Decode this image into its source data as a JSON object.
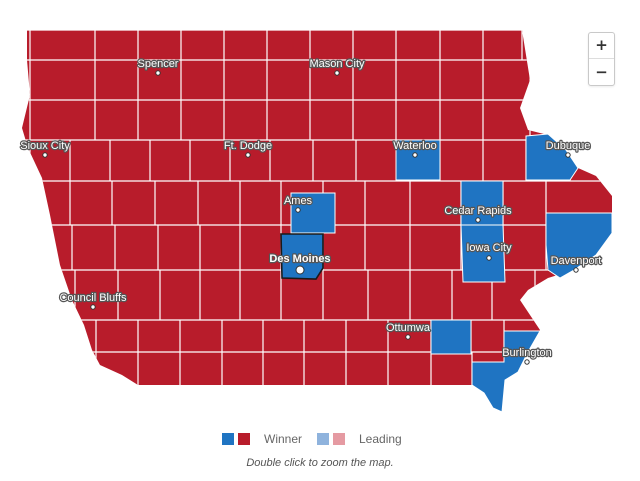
{
  "map": {
    "state": "Iowa",
    "colors": {
      "dem_winner": "#1f74c2",
      "rep_winner": "#b81c2b",
      "dem_leading": "#8fb3dd",
      "rep_leading": "#e59aa2",
      "county_border": "#ffffff",
      "highlight_border": "#1a1a1a"
    },
    "cities": [
      {
        "name": "Spencer"
      },
      {
        "name": "Mason City"
      },
      {
        "name": "Sioux City"
      },
      {
        "name": "Ft. Dodge"
      },
      {
        "name": "Waterloo"
      },
      {
        "name": "Dubuque"
      },
      {
        "name": "Ames"
      },
      {
        "name": "Cedar Rapids"
      },
      {
        "name": "Des Moines"
      },
      {
        "name": "Iowa City"
      },
      {
        "name": "Davenport"
      },
      {
        "name": "Council Bluffs"
      },
      {
        "name": "Ottumwa"
      },
      {
        "name": "Burlington"
      }
    ],
    "blue_counties": [
      "Black Hawk",
      "Story",
      "Polk",
      "Linn",
      "Johnson",
      "Dubuque",
      "Scott",
      "Wapello",
      "Des Moines"
    ],
    "highlighted_county": "Polk"
  },
  "zoom": {
    "in_label": "+",
    "out_label": "−"
  },
  "legend": {
    "winner_label": "Winner",
    "leading_label": "Leading"
  },
  "hint": "Double click to zoom the map."
}
